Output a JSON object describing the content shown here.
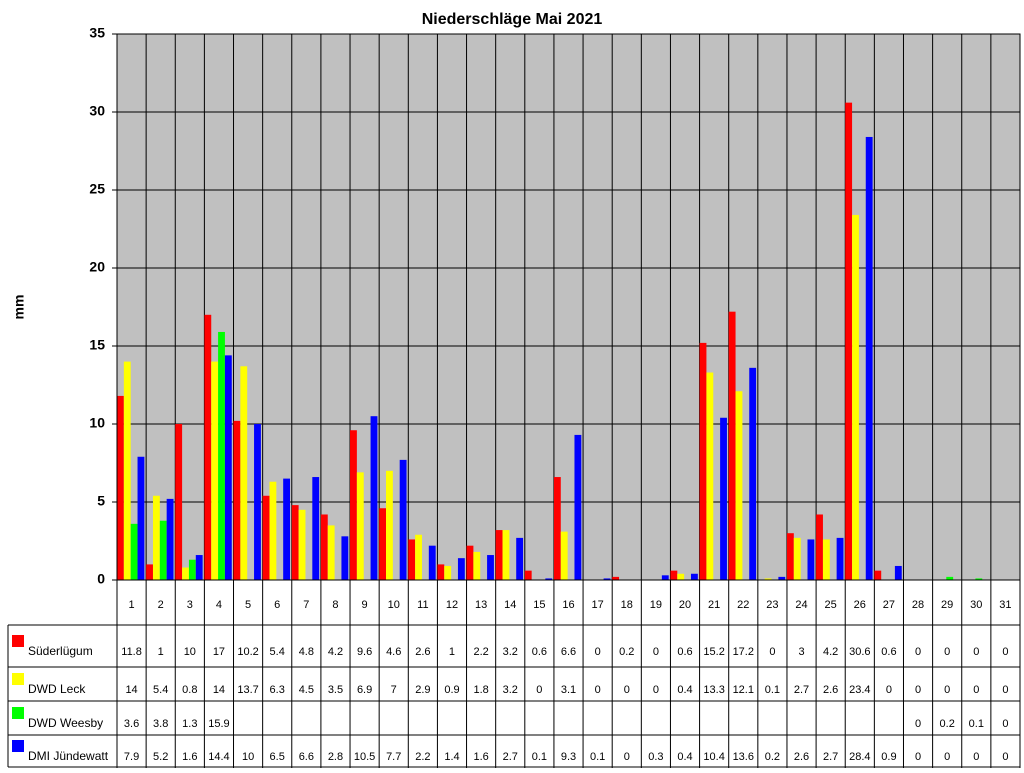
{
  "chart_data": {
    "type": "bar",
    "title": "Niederschläge Mai 2021",
    "y_label": "mm",
    "categories": [
      "1",
      "2",
      "3",
      "4",
      "5",
      "6",
      "7",
      "8",
      "9",
      "10",
      "11",
      "12",
      "13",
      "14",
      "15",
      "16",
      "17",
      "18",
      "19",
      "20",
      "21",
      "22",
      "23",
      "24",
      "25",
      "26",
      "27",
      "28",
      "29",
      "30",
      "31"
    ],
    "series": [
      {
        "name": "Süderlügum",
        "color": "#ff0000",
        "values": [
          11.8,
          1,
          10,
          17,
          10.2,
          5.4,
          4.8,
          4.2,
          9.6,
          4.6,
          2.6,
          1,
          2.2,
          3.2,
          0.6,
          6.6,
          0,
          0.2,
          0,
          0.6,
          15.2,
          17.2,
          0,
          3,
          4.2,
          30.6,
          0.6,
          0,
          0,
          0,
          0
        ]
      },
      {
        "name": "DWD Leck",
        "color": "#ffff00",
        "values": [
          14,
          5.4,
          0.8,
          14,
          13.7,
          6.3,
          4.5,
          3.5,
          6.9,
          7,
          2.9,
          0.9,
          1.8,
          3.2,
          0,
          3.1,
          0,
          0,
          0,
          0.4,
          13.3,
          12.1,
          0.1,
          2.7,
          2.6,
          23.4,
          0,
          0,
          0,
          0,
          0
        ]
      },
      {
        "name": "DWD Weesby",
        "color": "#00ff00",
        "values": [
          3.6,
          3.8,
          1.3,
          15.9,
          null,
          null,
          null,
          null,
          null,
          null,
          null,
          null,
          null,
          null,
          null,
          null,
          null,
          null,
          null,
          null,
          null,
          null,
          null,
          null,
          null,
          null,
          null,
          0,
          0.2,
          0.1,
          0
        ]
      },
      {
        "name": "DMI Jündewatt",
        "color": "#0000ff",
        "values": [
          7.9,
          5.2,
          1.6,
          14.4,
          10,
          6.5,
          6.6,
          2.8,
          10.5,
          7.7,
          2.2,
          1.4,
          1.6,
          2.7,
          0.1,
          9.3,
          0.1,
          0,
          0.3,
          0.4,
          10.4,
          13.6,
          0.2,
          2.6,
          2.7,
          28.4,
          0.9,
          0,
          0,
          0,
          0
        ]
      }
    ],
    "ylim": [
      0,
      35
    ],
    "yticks": [
      0,
      5,
      10,
      15,
      20,
      25,
      30,
      35
    ],
    "grid": true
  }
}
